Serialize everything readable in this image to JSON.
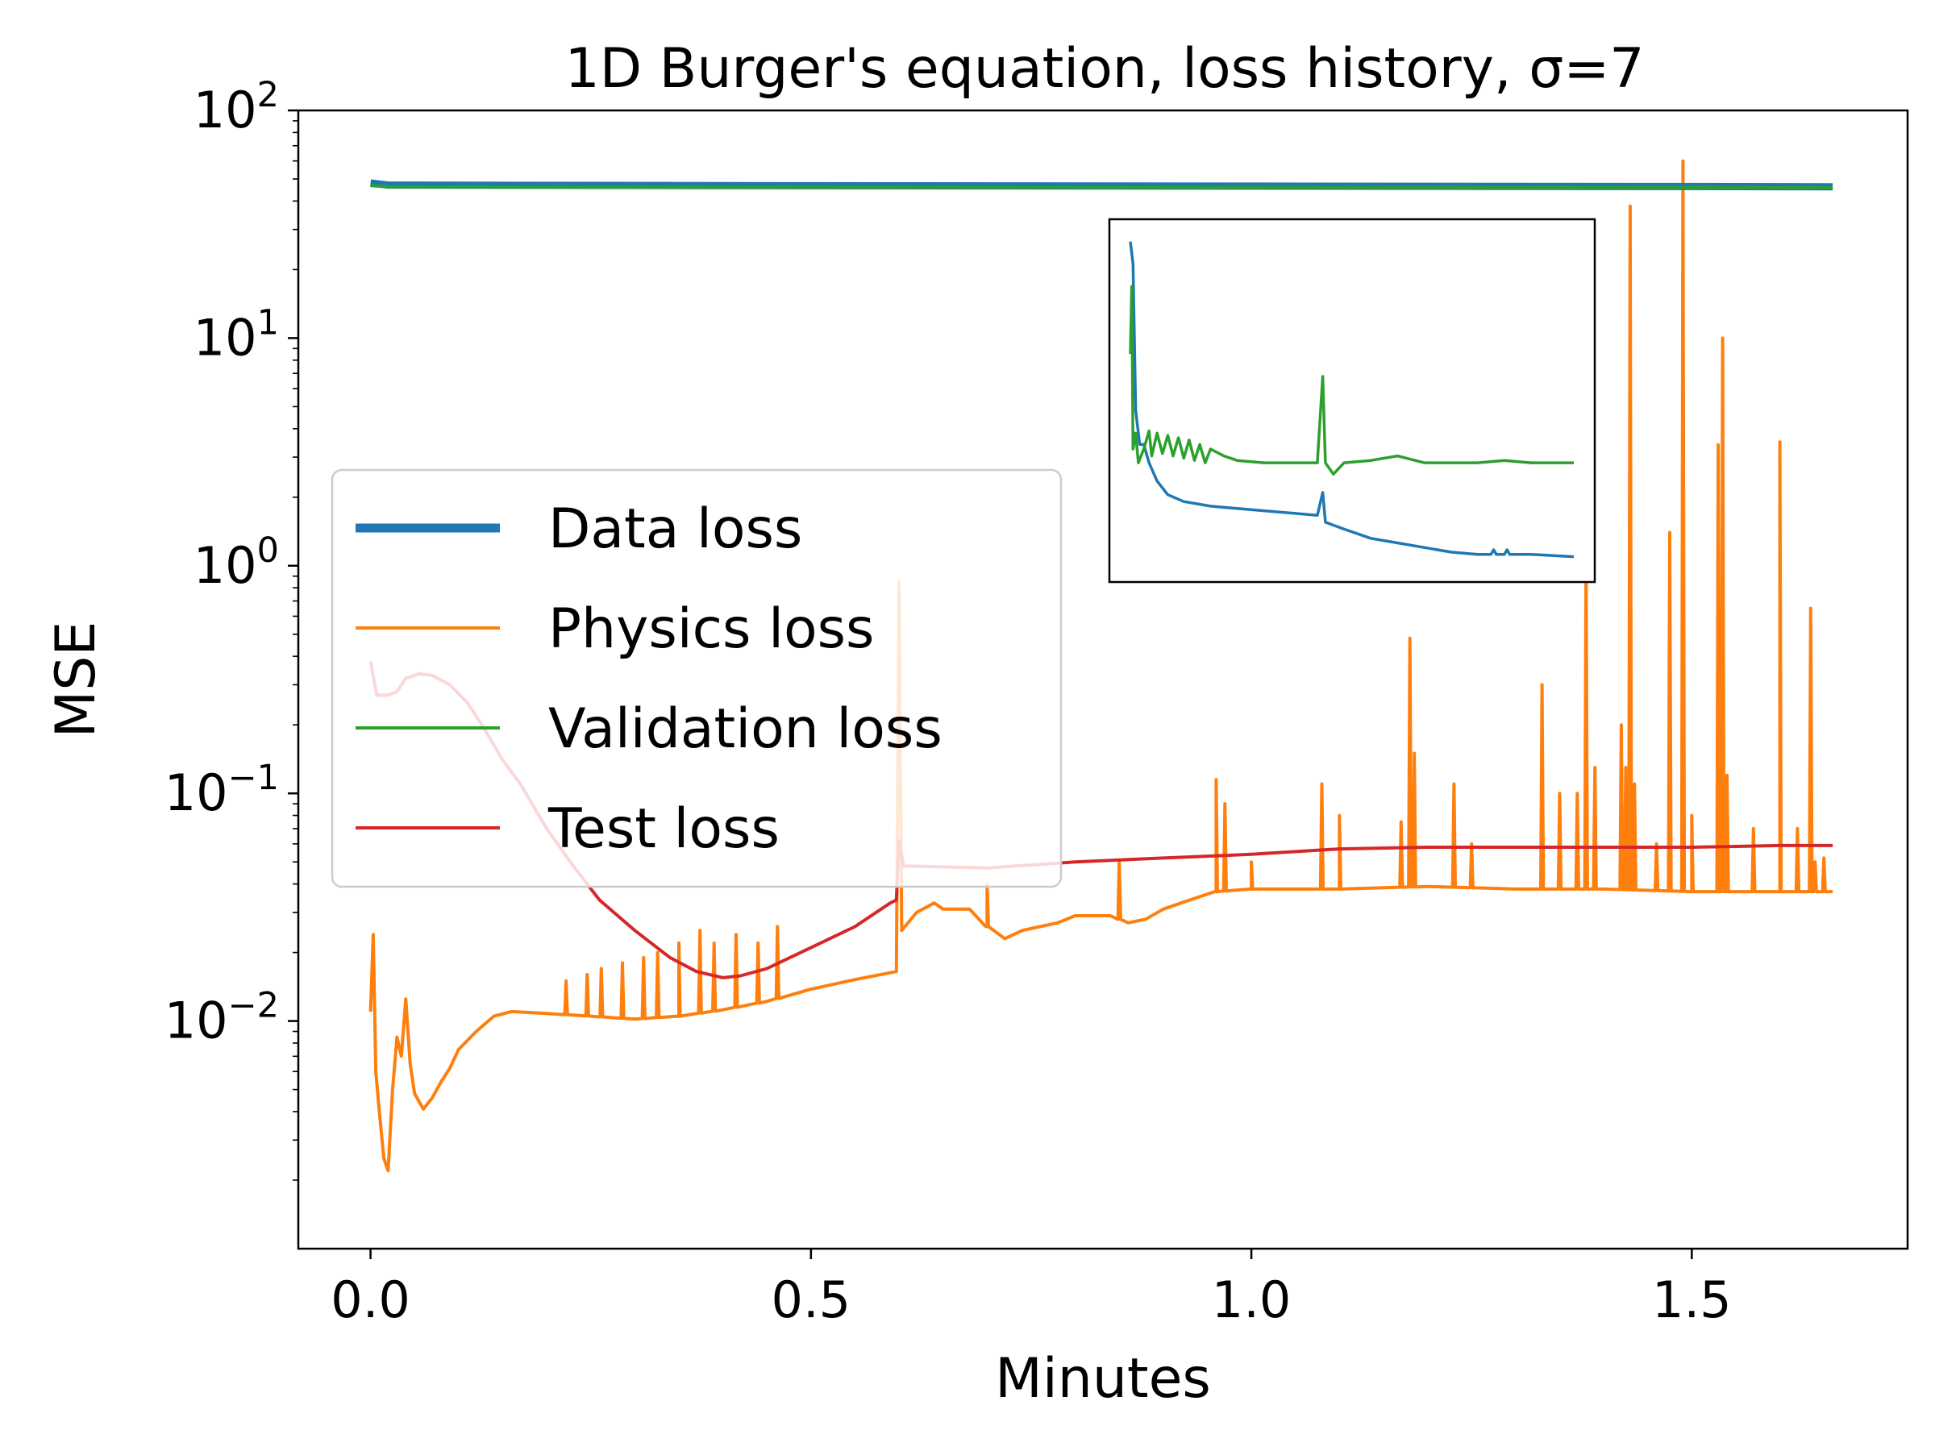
{
  "chart_data": {
    "type": "line",
    "title": "1D Burger's equation, loss history, σ=7",
    "xlabel": "Minutes",
    "ylabel": "MSE",
    "xlim": [
      -0.082,
      1.745
    ],
    "yscale": "log",
    "ylim": [
      0.001,
      100
    ],
    "x_ticks": [
      {
        "value": 0.0,
        "label": "0.0"
      },
      {
        "value": 0.5,
        "label": "0.5"
      },
      {
        "value": 1.0,
        "label": "1.0"
      },
      {
        "value": 1.5,
        "label": "1.5"
      }
    ],
    "y_ticks": [
      {
        "value": 0.01,
        "base": "10",
        "exp": "−2"
      },
      {
        "value": 0.1,
        "base": "10",
        "exp": "−1"
      },
      {
        "value": 1,
        "base": "10",
        "exp": "0"
      },
      {
        "value": 10,
        "base": "10",
        "exp": "1"
      },
      {
        "value": 100,
        "base": "10",
        "exp": "2"
      }
    ],
    "grid": false,
    "legend_position": "center-left",
    "series": [
      {
        "name": "Data loss",
        "color": "#1f77b4",
        "thick": true,
        "points": [
          [
            0.0,
            48.0
          ],
          [
            0.02,
            47.0
          ],
          [
            0.5,
            46.7
          ],
          [
            1.0,
            46.5
          ],
          [
            1.5,
            46.3
          ],
          [
            1.66,
            46.2
          ]
        ]
      },
      {
        "name": "Physics loss",
        "color": "#ff7f0e",
        "thick": false,
        "points": [
          [
            0.0,
            0.011
          ],
          [
            0.003,
            0.024
          ],
          [
            0.006,
            0.006
          ],
          [
            0.01,
            0.004
          ],
          [
            0.015,
            0.0025
          ],
          [
            0.02,
            0.0022
          ],
          [
            0.025,
            0.005
          ],
          [
            0.03,
            0.0085
          ],
          [
            0.035,
            0.007
          ],
          [
            0.04,
            0.0125
          ],
          [
            0.045,
            0.0065
          ],
          [
            0.05,
            0.0048
          ],
          [
            0.06,
            0.0041
          ],
          [
            0.07,
            0.0046
          ],
          [
            0.08,
            0.0054
          ],
          [
            0.09,
            0.0062
          ],
          [
            0.1,
            0.0075
          ],
          [
            0.12,
            0.009
          ],
          [
            0.14,
            0.0105
          ],
          [
            0.16,
            0.011
          ],
          [
            0.2,
            0.0108
          ],
          [
            0.25,
            0.0105
          ],
          [
            0.3,
            0.0102
          ],
          [
            0.35,
            0.0105
          ],
          [
            0.4,
            0.0112
          ],
          [
            0.45,
            0.0122
          ],
          [
            0.5,
            0.0138
          ],
          [
            0.55,
            0.0152
          ],
          [
            0.597,
            0.0165
          ],
          [
            0.6,
            0.85
          ],
          [
            0.603,
            0.025
          ],
          [
            0.62,
            0.03
          ],
          [
            0.64,
            0.033
          ],
          [
            0.65,
            0.031
          ],
          [
            0.68,
            0.031
          ],
          [
            0.7,
            0.026
          ],
          [
            0.72,
            0.023
          ],
          [
            0.74,
            0.025
          ],
          [
            0.78,
            0.027
          ],
          [
            0.8,
            0.029
          ],
          [
            0.84,
            0.029
          ],
          [
            0.86,
            0.027
          ],
          [
            0.88,
            0.028
          ],
          [
            0.9,
            0.031
          ],
          [
            0.93,
            0.034
          ],
          [
            0.96,
            0.037
          ],
          [
            1.0,
            0.038
          ],
          [
            1.1,
            0.038
          ],
          [
            1.2,
            0.039
          ],
          [
            1.3,
            0.038
          ],
          [
            1.4,
            0.038
          ],
          [
            1.5,
            0.037
          ],
          [
            1.6,
            0.037
          ],
          [
            1.66,
            0.037
          ]
        ],
        "spikes": [
          [
            0.222,
            0.015
          ],
          [
            0.246,
            0.016
          ],
          [
            0.262,
            0.017
          ],
          [
            0.286,
            0.018
          ],
          [
            0.31,
            0.019
          ],
          [
            0.326,
            0.02
          ],
          [
            0.35,
            0.022
          ],
          [
            0.374,
            0.025
          ],
          [
            0.39,
            0.022
          ],
          [
            0.415,
            0.024
          ],
          [
            0.44,
            0.022
          ],
          [
            0.462,
            0.026
          ],
          [
            0.7,
            0.04
          ],
          [
            0.85,
            0.05
          ],
          [
            0.96,
            0.115
          ],
          [
            0.97,
            0.09
          ],
          [
            1.0,
            0.05
          ],
          [
            1.08,
            0.11
          ],
          [
            1.1,
            0.08
          ],
          [
            1.17,
            0.075
          ],
          [
            1.18,
            0.48
          ],
          [
            1.185,
            0.15
          ],
          [
            1.23,
            0.11
          ],
          [
            1.25,
            0.06
          ],
          [
            1.33,
            0.3
          ],
          [
            1.35,
            0.1
          ],
          [
            1.37,
            0.1
          ],
          [
            1.38,
            1.0
          ],
          [
            1.39,
            0.13
          ],
          [
            1.42,
            0.2
          ],
          [
            1.425,
            0.13
          ],
          [
            1.43,
            38.0
          ],
          [
            1.435,
            0.11
          ],
          [
            1.46,
            0.06
          ],
          [
            1.475,
            1.4
          ],
          [
            1.49,
            60.0
          ],
          [
            1.5,
            0.08
          ],
          [
            1.53,
            3.4
          ],
          [
            1.535,
            10.0
          ],
          [
            1.54,
            0.12
          ],
          [
            1.57,
            0.07
          ],
          [
            1.6,
            3.5
          ],
          [
            1.62,
            0.07
          ],
          [
            1.635,
            0.65
          ],
          [
            1.64,
            0.05
          ],
          [
            1.65,
            0.052
          ]
        ]
      },
      {
        "name": "Validation loss",
        "color": "#2ca02c",
        "thick": false,
        "points": [
          [
            0.0,
            46.8
          ],
          [
            0.02,
            46.2
          ],
          [
            0.5,
            46.0
          ],
          [
            1.0,
            45.9
          ],
          [
            1.5,
            45.9
          ],
          [
            1.66,
            45.8
          ]
        ]
      },
      {
        "name": "Test loss",
        "color": "#d62728",
        "thick": false,
        "points": [
          [
            0.0,
            0.38
          ],
          [
            0.007,
            0.27
          ],
          [
            0.02,
            0.27
          ],
          [
            0.03,
            0.28
          ],
          [
            0.04,
            0.32
          ],
          [
            0.055,
            0.335
          ],
          [
            0.07,
            0.33
          ],
          [
            0.09,
            0.3
          ],
          [
            0.11,
            0.25
          ],
          [
            0.13,
            0.19
          ],
          [
            0.15,
            0.14
          ],
          [
            0.17,
            0.11
          ],
          [
            0.2,
            0.07
          ],
          [
            0.23,
            0.048
          ],
          [
            0.26,
            0.034
          ],
          [
            0.3,
            0.025
          ],
          [
            0.34,
            0.019
          ],
          [
            0.37,
            0.0165
          ],
          [
            0.4,
            0.0155
          ],
          [
            0.42,
            0.0158
          ],
          [
            0.45,
            0.017
          ],
          [
            0.5,
            0.021
          ],
          [
            0.55,
            0.026
          ],
          [
            0.59,
            0.033
          ],
          [
            0.597,
            0.034
          ],
          [
            0.6,
            0.062
          ],
          [
            0.605,
            0.048
          ],
          [
            0.7,
            0.047
          ],
          [
            0.8,
            0.05
          ],
          [
            0.9,
            0.052
          ],
          [
            1.0,
            0.054
          ],
          [
            1.1,
            0.057
          ],
          [
            1.2,
            0.058
          ],
          [
            1.3,
            0.058
          ],
          [
            1.4,
            0.058
          ],
          [
            1.5,
            0.058
          ],
          [
            1.6,
            0.059
          ],
          [
            1.66,
            0.059
          ]
        ]
      }
    ],
    "inset": {
      "xlim": [
        0,
        1.66
      ],
      "yscale": "log",
      "ylim": [
        46.0,
        47.6
      ],
      "series": [
        {
          "name": "Data loss",
          "color": "#1f77b4",
          "points": [
            [
              0.0,
              47.5
            ],
            [
              0.01,
              47.4
            ],
            [
              0.02,
              46.75
            ],
            [
              0.035,
              46.6
            ],
            [
              0.04,
              46.6
            ],
            [
              0.05,
              46.6
            ],
            [
              0.07,
              46.52
            ],
            [
              0.1,
              46.44
            ],
            [
              0.14,
              46.38
            ],
            [
              0.2,
              46.35
            ],
            [
              0.3,
              46.33
            ],
            [
              0.4,
              46.32
            ],
            [
              0.5,
              46.31
            ],
            [
              0.6,
              46.3
            ],
            [
              0.7,
              46.29
            ],
            [
              0.72,
              46.39
            ],
            [
              0.73,
              46.26
            ],
            [
              0.8,
              46.23
            ],
            [
              0.9,
              46.19
            ],
            [
              1.0,
              46.17
            ],
            [
              1.1,
              46.15
            ],
            [
              1.2,
              46.13
            ],
            [
              1.3,
              46.12
            ],
            [
              1.35,
              46.12
            ],
            [
              1.36,
              46.14
            ],
            [
              1.37,
              46.12
            ],
            [
              1.4,
              46.12
            ],
            [
              1.41,
              46.14
            ],
            [
              1.42,
              46.12
            ],
            [
              1.5,
              46.12
            ],
            [
              1.66,
              46.11
            ]
          ]
        },
        {
          "name": "Validation loss",
          "color": "#2ca02c",
          "points": [
            [
              0.0,
              47.0
            ],
            [
              0.005,
              47.3
            ],
            [
              0.01,
              46.58
            ],
            [
              0.02,
              46.65
            ],
            [
              0.03,
              46.52
            ],
            [
              0.05,
              46.58
            ],
            [
              0.07,
              46.66
            ],
            [
              0.08,
              46.55
            ],
            [
              0.1,
              46.65
            ],
            [
              0.12,
              46.56
            ],
            [
              0.14,
              46.64
            ],
            [
              0.16,
              46.55
            ],
            [
              0.18,
              46.63
            ],
            [
              0.2,
              46.54
            ],
            [
              0.22,
              46.62
            ],
            [
              0.24,
              46.53
            ],
            [
              0.26,
              46.6
            ],
            [
              0.28,
              46.52
            ],
            [
              0.3,
              46.58
            ],
            [
              0.35,
              46.55
            ],
            [
              0.4,
              46.53
            ],
            [
              0.5,
              46.52
            ],
            [
              0.6,
              46.52
            ],
            [
              0.7,
              46.52
            ],
            [
              0.72,
              46.9
            ],
            [
              0.73,
              46.52
            ],
            [
              0.76,
              46.47
            ],
            [
              0.8,
              46.52
            ],
            [
              0.9,
              46.53
            ],
            [
              1.0,
              46.55
            ],
            [
              1.1,
              46.52
            ],
            [
              1.2,
              46.52
            ],
            [
              1.3,
              46.52
            ],
            [
              1.4,
              46.53
            ],
            [
              1.5,
              46.52
            ],
            [
              1.66,
              46.52
            ]
          ]
        }
      ]
    }
  }
}
